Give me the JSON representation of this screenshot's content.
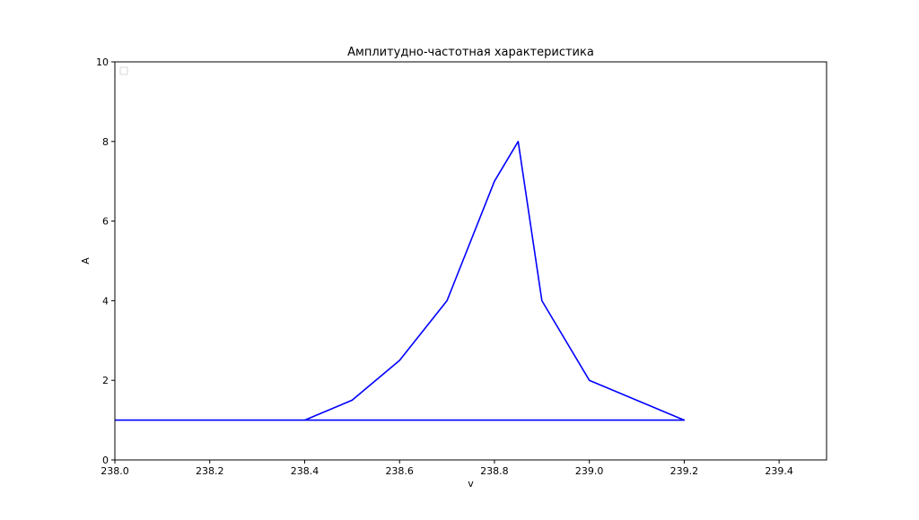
{
  "chart_data": {
    "type": "line",
    "title": "Амплитудно-частотная характеристика",
    "xlabel": "v",
    "ylabel": "A",
    "xlim": [
      238.0,
      239.5
    ],
    "ylim": [
      0,
      10
    ],
    "xticks": [
      238.0,
      238.2,
      238.4,
      238.6,
      238.8,
      239.0,
      239.2,
      239.4
    ],
    "xtick_labels": [
      "238.0",
      "238.2",
      "238.4",
      "238.6",
      "238.8",
      "239.0",
      "239.2",
      "239.4"
    ],
    "yticks": [
      0,
      2,
      4,
      6,
      8,
      10
    ],
    "ytick_labels": [
      "0",
      "2",
      "4",
      "6",
      "8",
      "10"
    ],
    "grid": false,
    "legend": {
      "placement": "top-left",
      "entries": []
    },
    "series": [
      {
        "color": "#0000ff",
        "x": [
          238.0,
          238.4,
          238.5,
          238.6,
          238.7,
          238.8,
          238.85,
          238.9,
          239.0,
          239.2,
          238.0
        ],
        "y": [
          1.0,
          1.0,
          1.5,
          2.5,
          4.0,
          7.0,
          8.0,
          4.0,
          2.0,
          1.0,
          1.0
        ]
      }
    ]
  }
}
